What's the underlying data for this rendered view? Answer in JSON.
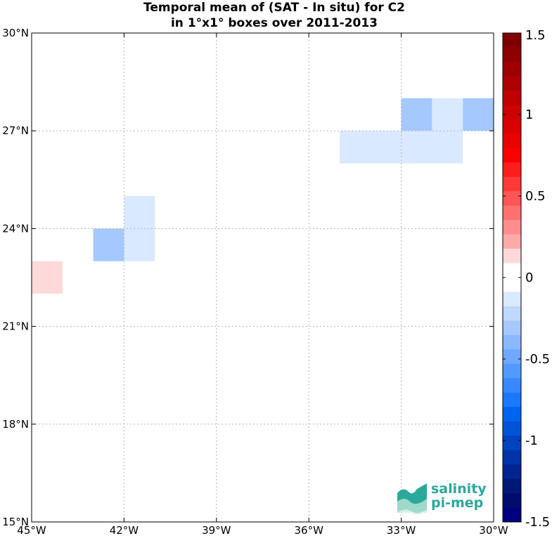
{
  "chart_data": {
    "type": "heatmap",
    "title": "Temporal mean of (SAT - In situ) for C2",
    "subtitle": "in 1°x1° boxes over 2011-2013",
    "xlim": [
      -45,
      -30
    ],
    "ylim": [
      15,
      30
    ],
    "x_ticks": [
      {
        "value": -45,
        "label": "45°W"
      },
      {
        "value": -42,
        "label": "42°W"
      },
      {
        "value": -39,
        "label": "39°W"
      },
      {
        "value": -36,
        "label": "36°W"
      },
      {
        "value": -33,
        "label": "33°W"
      },
      {
        "value": -30,
        "label": "30°W"
      }
    ],
    "y_ticks": [
      {
        "value": 30,
        "label": "30°N"
      },
      {
        "value": 27,
        "label": "27°N"
      },
      {
        "value": 24,
        "label": "24°N"
      },
      {
        "value": 21,
        "label": "21°N"
      },
      {
        "value": 18,
        "label": "18°N"
      },
      {
        "value": 15,
        "label": "15°N"
      }
    ],
    "grid": true,
    "cells": [
      {
        "lon": -45,
        "lat": 22,
        "value": 0.15
      },
      {
        "lon": -43,
        "lat": 23,
        "value": -0.3
      },
      {
        "lon": -42,
        "lat": 23,
        "value": -0.15
      },
      {
        "lon": -42,
        "lat": 24,
        "value": -0.15
      },
      {
        "lon": -35,
        "lat": 26,
        "value": -0.15
      },
      {
        "lon": -34,
        "lat": 26,
        "value": -0.15
      },
      {
        "lon": -33,
        "lat": 26,
        "value": -0.15
      },
      {
        "lon": -32,
        "lat": 26,
        "value": -0.15
      },
      {
        "lon": -33,
        "lat": 27,
        "value": -0.3
      },
      {
        "lon": -32,
        "lat": 27,
        "value": -0.15
      },
      {
        "lon": -31,
        "lat": 27,
        "value": -0.3
      }
    ],
    "colorbar": {
      "range": [
        -1.5,
        1.5
      ],
      "ticks": [
        {
          "value": 1.5,
          "label": "1.5"
        },
        {
          "value": 1,
          "label": "1"
        },
        {
          "value": 0.5,
          "label": "0.5"
        },
        {
          "value": 0,
          "label": "0"
        },
        {
          "value": -0.5,
          "label": "-0.5"
        },
        {
          "value": -1,
          "label": "-1"
        },
        {
          "value": -1.5,
          "label": "-1.5"
        }
      ],
      "colors_top_to_bottom": [
        "#800000",
        "#8f0000",
        "#9e0000",
        "#ad0000",
        "#bd0000",
        "#cc0000",
        "#db0000",
        "#ea0000",
        "#fa0000",
        "#ff1c1c",
        "#ff3838",
        "#ff5555",
        "#ff7171",
        "#ff8d8d",
        "#ffaaaa",
        "#ffd9d9",
        "#ffffff",
        "#ffffff",
        "#d9e9ff",
        "#bfd8ff",
        "#a4c8ff",
        "#8ab8ff",
        "#6ea8ff",
        "#529aff",
        "#3a88ff",
        "#1c78ff",
        "#0064f0",
        "#0054d8",
        "#0044c0",
        "#0034a8",
        "#002490",
        "#001878",
        "#000c6e",
        "#000080"
      ]
    }
  },
  "logo": {
    "line1": "salinity",
    "line2": "pi-mep"
  }
}
